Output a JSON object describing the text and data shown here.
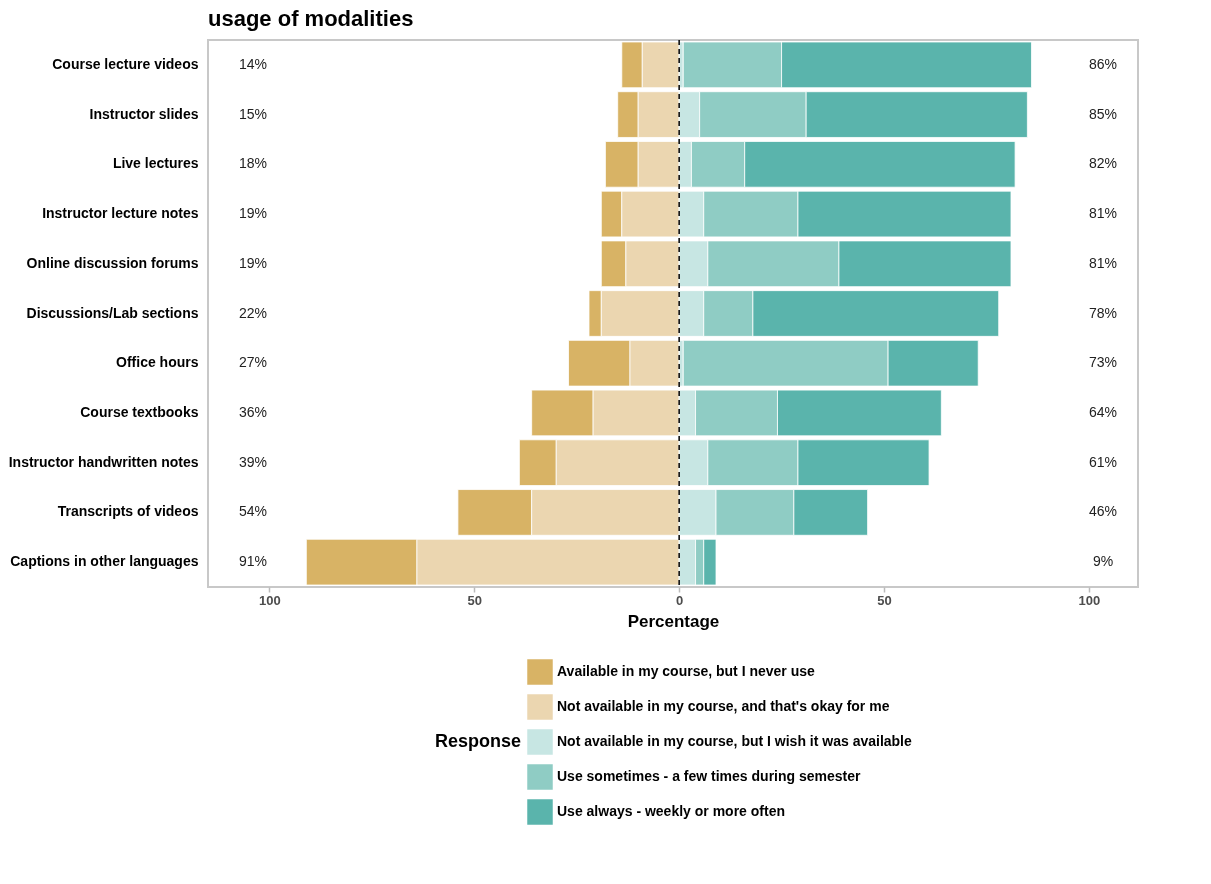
{
  "chart_data": {
    "type": "bar",
    "orientation": "horizontal",
    "stacked": true,
    "title": "usage of modalities",
    "xlabel": "Percentage",
    "legend_title": "Response",
    "legend": "bottom",
    "grid": false,
    "categories": [
      "Course lecture videos",
      "Instructor slides",
      "Live lectures",
      "Instructor lecture notes",
      "Online discussion forums",
      "Discussions/Lab sections",
      "Office hours",
      "Course textbooks",
      "Instructor handwritten notes",
      "Transcripts of videos",
      "Captions in other languages"
    ],
    "series": [
      {
        "name": "Available in my course, but I never use",
        "color": "#d8b365",
        "values": [
          -5,
          -5,
          -8,
          -5,
          -6,
          -3,
          -15,
          -15,
          -9,
          -18,
          -27
        ]
      },
      {
        "name": "Not available in my course, and that's okay for me",
        "color": "#ebd6b0",
        "values": [
          -9,
          -10,
          -10,
          -14,
          -13,
          -19,
          -12,
          -21,
          -30,
          -36,
          -64
        ]
      },
      {
        "name": "Not available in my course, but I wish it was available",
        "color": "#c7e6e3",
        "values": [
          1,
          5,
          3,
          6,
          7,
          6,
          1,
          4,
          7,
          9,
          4
        ]
      },
      {
        "name": "Use sometimes - a few times during semester",
        "color": "#8fccc4",
        "values": [
          24,
          26,
          13,
          23,
          32,
          12,
          50,
          20,
          22,
          19,
          2
        ]
      },
      {
        "name": "Use always - weekly or more often",
        "color": "#5ab4ac",
        "values": [
          61,
          54,
          66,
          52,
          42,
          60,
          22,
          40,
          32,
          18,
          3
        ]
      }
    ],
    "xlim": [
      -115,
      112
    ],
    "xticks": [
      {
        "value": -100,
        "label": "100"
      },
      {
        "value": -50,
        "label": "50"
      },
      0,
      50,
      100
    ],
    "ref_lines": [
      {
        "axis": "x",
        "value": 0,
        "color": "#000000",
        "line_style": "dashed"
      }
    ],
    "annotations": [
      "14%",
      "86%",
      "15%",
      "85%",
      "18%",
      "82%",
      "19%",
      "81%",
      "19%",
      "81%",
      "22%",
      "78%",
      "27%",
      "73%",
      "36%",
      "64%",
      "39%",
      "61%",
      "54%",
      "46%",
      "91%",
      "9%"
    ]
  }
}
